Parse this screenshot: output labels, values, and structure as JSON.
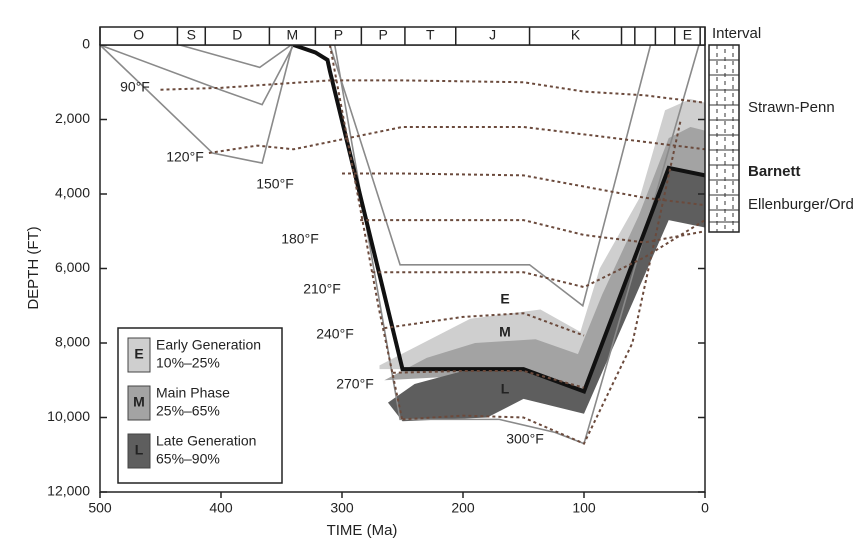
{
  "chart_data": {
    "type": "line",
    "x_label": "TIME (Ma)",
    "y_label": "DEPTH (FT)",
    "xlim": [
      500,
      0
    ],
    "xticks": [
      500,
      400,
      300,
      200,
      100,
      0
    ],
    "ylim": [
      0,
      12000
    ],
    "yticks": [
      0,
      {
        "value": 2000,
        "label": "2,000"
      },
      {
        "value": 4000,
        "label": "4,000"
      },
      {
        "value": 6000,
        "label": "6,000"
      },
      {
        "value": 8000,
        "label": "8,000"
      },
      {
        "value": 10000,
        "label": "10,000"
      },
      {
        "value": 12000,
        "label": "12,000"
      }
    ],
    "interval_title": "Interval",
    "interval_labels": [
      "O",
      "S",
      "D",
      "M",
      "P",
      "P",
      "T",
      "J",
      "K",
      null,
      null,
      null,
      "E",
      null
    ],
    "interval_bounds": [
      500,
      436,
      413,
      360,
      322,
      284,
      248,
      206,
      145,
      69,
      58,
      41,
      25,
      4,
      0
    ],
    "formations": [
      "Strawn-Penn",
      "Barnett",
      "Ellenburger/Ord"
    ],
    "zones": [
      {
        "color": "#cfcfcf",
        "x": [
          269,
          236,
          194,
          136,
          103,
          87,
          54,
          33,
          12,
          0,
          0,
          30,
          100,
          150,
          269
        ],
        "values": [
          8600,
          8050,
          7350,
          7100,
          7700,
          6000,
          4100,
          1750,
          1450,
          1550,
          4800,
          4500,
          9400,
          8700,
          8700
        ]
      },
      {
        "color": "#a3a3a3",
        "x": [
          265,
          230,
          190,
          140,
          105,
          85,
          55,
          30,
          12,
          0,
          0,
          30,
          100,
          150,
          265
        ],
        "values": [
          9000,
          8400,
          8000,
          7900,
          8300,
          6700,
          4600,
          2500,
          2200,
          2300,
          4800,
          4500,
          9500,
          8800,
          9000
        ]
      },
      {
        "color": "#5e5e5e",
        "x": [
          262,
          240,
          200,
          150,
          100,
          30,
          0,
          0,
          30,
          100,
          150,
          180,
          250
        ],
        "values": [
          9600,
          9100,
          8750,
          8700,
          9300,
          3300,
          3500,
          4900,
          4700,
          9900,
          9500,
          10000,
          10100
        ]
      }
    ],
    "series": [
      {
        "color": "#8a8a8a",
        "style": "thin",
        "x": [
          500,
          405,
          366,
          340
        ],
        "values": [
          0,
          1150,
          1600,
          0
        ]
      },
      {
        "color": "#8a8a8a",
        "style": "thin",
        "x": [
          434,
          368,
          342
        ],
        "values": [
          0,
          600,
          0
        ]
      },
      {
        "color": "#8a8a8a",
        "style": "thin",
        "x": [
          500,
          407,
          366,
          341
        ],
        "values": [
          0,
          2900,
          3170,
          0
        ]
      },
      {
        "color": "#8a8a8a",
        "style": "thin",
        "x": [
          310,
          252,
          145,
          101,
          45
        ],
        "values": [
          0,
          5900,
          5900,
          7000,
          0
        ]
      },
      {
        "color": "#8a8a8a",
        "style": "thin",
        "x": [
          306,
          252,
          170,
          124,
          100,
          5
        ],
        "values": [
          0,
          10050,
          10050,
          10400,
          10700,
          0
        ]
      },
      {
        "color": "#111111",
        "style": "thick",
        "x": [
          340,
          322,
          312,
          310,
          250,
          150,
          100,
          30,
          0
        ],
        "values": [
          0,
          200,
          400,
          700,
          8700,
          8700,
          9300,
          3300,
          3500
        ]
      },
      {
        "color": "#6b4a3c",
        "style": "dashed",
        "label": "90°F",
        "x": [
          450,
          400,
          310,
          250,
          150,
          100,
          50,
          0
        ],
        "values": [
          1200,
          1150,
          950,
          950,
          1000,
          1250,
          1350,
          1550
        ]
      },
      {
        "color": "#6b4a3c",
        "style": "dashed",
        "label": "120°F",
        "x": [
          410,
          370,
          340,
          250,
          150,
          100,
          50,
          0
        ],
        "values": [
          2900,
          2700,
          2800,
          2200,
          2200,
          2400,
          2600,
          2800
        ]
      },
      {
        "color": "#6b4a3c",
        "style": "dashed",
        "label": "150°F",
        "x": [
          300,
          250,
          150,
          100,
          50,
          0
        ],
        "values": [
          3450,
          3450,
          3500,
          3800,
          4100,
          4300
        ]
      },
      {
        "color": "#6b4a3c",
        "style": "dashed",
        "label": "180°F",
        "x": [
          285,
          250,
          150,
          100,
          50,
          0
        ],
        "values": [
          4700,
          4700,
          4700,
          5100,
          5300,
          5000
        ]
      },
      {
        "color": "#6b4a3c",
        "style": "dashed",
        "label": "210°F",
        "x": [
          275,
          250,
          150,
          100,
          50,
          0
        ],
        "values": [
          6100,
          6100,
          6100,
          6500,
          5700,
          4700
        ]
      },
      {
        "color": "#6b4a3c",
        "style": "dashed",
        "label": "240°F",
        "x": [
          265,
          200,
          150,
          100
        ],
        "values": [
          7600,
          7300,
          7200,
          7800
        ]
      },
      {
        "color": "#6b4a3c",
        "style": "dashed",
        "label": "270°F",
        "x": [
          258,
          200,
          150,
          100
        ],
        "values": [
          8800,
          8750,
          8750,
          9200
        ]
      },
      {
        "color": "#6b4a3c",
        "style": "dashed",
        "label": "300°F",
        "x": [
          250,
          200,
          150,
          100,
          60,
          20
        ],
        "values": [
          10050,
          9950,
          10000,
          10700,
          8000,
          2000
        ]
      },
      {
        "color": "#6b4a3c",
        "style": "dashed",
        "x": [
          310,
          290,
          270,
          250
        ],
        "values": [
          0,
          3500,
          7000,
          10100
        ]
      }
    ],
    "legend": [
      {
        "letter": "E",
        "label": "Early Generation",
        "range": "10%–25%",
        "color": "#cfcfcf"
      },
      {
        "letter": "M",
        "label": "Main Phase",
        "range": "25%–65%",
        "color": "#a3a3a3"
      },
      {
        "letter": "L",
        "label": "Late Generation",
        "range": "65%–90%",
        "color": "#5e5e5e"
      }
    ]
  }
}
